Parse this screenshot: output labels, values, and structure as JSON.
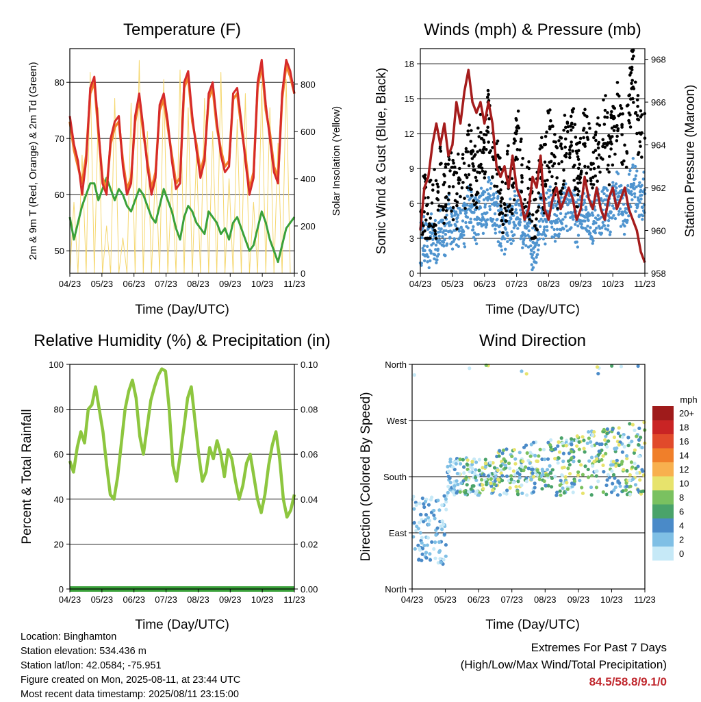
{
  "chart_data": [
    {
      "type": "line",
      "title": "Temperature (F)",
      "xlabel": "Time (Day/UTC)",
      "ylabel": "2m & 9m T (Red, Orange) & 2m Td (Green)",
      "ylabel_right": "Solar Insolation (Yellow)",
      "x_ticks": [
        "04/23",
        "05/23",
        "06/23",
        "07/23",
        "08/23",
        "09/23",
        "10/23",
        "11/23"
      ],
      "ylim": [
        46,
        86
      ],
      "yticks": [
        50,
        60,
        70,
        80
      ],
      "ylim_right": [
        0,
        950
      ],
      "yticks_right": [
        0,
        200,
        400,
        600,
        800
      ],
      "grid": true,
      "series": [
        {
          "name": "2m T",
          "color": "#d62a2a",
          "values": [
            74,
            69,
            66,
            60,
            66,
            79,
            81,
            72,
            62,
            60,
            70,
            73,
            74,
            65,
            60,
            62,
            74,
            78,
            72,
            65,
            60,
            63,
            76,
            78,
            73,
            66,
            61,
            62,
            80,
            82,
            74,
            68,
            63,
            66,
            78,
            80,
            73,
            67,
            64,
            65,
            78,
            79,
            73,
            66,
            60,
            63,
            80,
            84,
            76,
            70,
            64,
            62,
            78,
            84,
            82,
            78
          ]
        },
        {
          "name": "9m T",
          "color": "#f07f2a",
          "values": [
            73,
            68,
            65,
            62,
            67,
            78,
            80,
            71,
            63,
            61,
            69,
            72,
            73,
            66,
            61,
            63,
            73,
            77,
            71,
            66,
            61,
            64,
            75,
            77,
            72,
            67,
            62,
            63,
            79,
            81,
            73,
            69,
            64,
            67,
            77,
            79,
            72,
            68,
            65,
            66,
            77,
            78,
            72,
            67,
            61,
            64,
            79,
            83,
            75,
            71,
            65,
            63,
            77,
            83,
            81,
            78
          ]
        },
        {
          "name": "2m Td",
          "color": "#3aa13a",
          "values": [
            56,
            52,
            55,
            58,
            60,
            62,
            62,
            59,
            61,
            63,
            61,
            59,
            61,
            60,
            58,
            57,
            59,
            61,
            60,
            58,
            56,
            55,
            58,
            61,
            59,
            57,
            54,
            52,
            56,
            58,
            57,
            55,
            54,
            53,
            57,
            56,
            55,
            53,
            54,
            52,
            55,
            56,
            54,
            52,
            50,
            51,
            54,
            57,
            55,
            52,
            50,
            48,
            51,
            54,
            55,
            56
          ]
        },
        {
          "name": "Solar Insolation",
          "color": "#f5d76e",
          "values": [
            0,
            300,
            0,
            500,
            0,
            850,
            0,
            700,
            0,
            200,
            0,
            740,
            0,
            150,
            0,
            720,
            0,
            900,
            0,
            600,
            0,
            450,
            0,
            820,
            0,
            400,
            0,
            860,
            0,
            700,
            0,
            500,
            0,
            740,
            0,
            600,
            0,
            850,
            0,
            400,
            0,
            650,
            0,
            760,
            0,
            300,
            0,
            800,
            0,
            700,
            0,
            550,
            0,
            820,
            0,
            0
          ]
        }
      ]
    },
    {
      "type": "scatter",
      "title": "Winds (mph) & Pressure (mb)",
      "xlabel": "Time (Day/UTC)",
      "ylabel": "Sonic Wind & Gust (Blue, Black)",
      "ylabel_right": "Station Pressure (Maroon)",
      "x_ticks": [
        "04/23",
        "05/23",
        "06/23",
        "07/23",
        "08/23",
        "09/23",
        "10/23",
        "11/23"
      ],
      "ylim": [
        0,
        19.3
      ],
      "yticks": [
        0,
        3,
        6,
        9,
        12,
        15,
        18
      ],
      "ylim_right": [
        958,
        968.5
      ],
      "yticks_right": [
        958,
        960,
        962,
        964,
        966,
        968
      ],
      "grid": true,
      "series": [
        {
          "name": "Wind",
          "color": "#4f94cf",
          "values": [
            2.5,
            3,
            2,
            3.5,
            2.5,
            4,
            3,
            5,
            4,
            3.5,
            5,
            4,
            6,
            5,
            4.5,
            6,
            5,
            7,
            6,
            5,
            4,
            3,
            5,
            4,
            6,
            5,
            3,
            4,
            2,
            3,
            5,
            4,
            6,
            5,
            4,
            5,
            6,
            5,
            6,
            4,
            5,
            6,
            5,
            4,
            6,
            5,
            6,
            5,
            6,
            7,
            6,
            5,
            7,
            8,
            7,
            6,
            7
          ]
        },
        {
          "name": "Gust",
          "color": "#000000",
          "values": [
            5,
            6,
            4,
            7,
            5,
            8,
            6,
            9,
            7,
            6,
            9,
            7,
            11,
            9,
            8,
            12,
            10,
            14,
            11,
            9,
            7,
            6,
            9,
            7,
            12,
            10,
            6,
            8,
            4,
            6,
            9,
            8,
            12,
            10,
            8,
            9,
            11,
            10,
            12,
            8,
            9,
            12,
            10,
            8,
            11,
            10,
            13,
            10,
            12,
            14,
            12,
            10,
            14,
            17,
            13,
            11,
            12
          ]
        },
        {
          "name": "Station Pressure",
          "color": "#a51c1c",
          "values": [
            960,
            962,
            962.5,
            964,
            965,
            964,
            965,
            963.5,
            964,
            966,
            965,
            966.5,
            967.5,
            966,
            965.5,
            966,
            965,
            966,
            965,
            963,
            962.5,
            963,
            962,
            963.5,
            962,
            961.5,
            960.5,
            961,
            962.5,
            962,
            963.5,
            961,
            960.5,
            961.5,
            962,
            961,
            961.5,
            962,
            961.5,
            960.5,
            961,
            962.5,
            961.5,
            961,
            962,
            961,
            960.5,
            961.5,
            962,
            961,
            961.5,
            962,
            961,
            960.5,
            960,
            959,
            958.5
          ]
        }
      ]
    },
    {
      "type": "line",
      "title": "Relative Humidity (%) & Precipitation (in)",
      "xlabel": "Time (Day/UTC)",
      "ylabel": "Percent & Total Rainfall",
      "x_ticks": [
        "04/23",
        "05/23",
        "06/23",
        "07/23",
        "08/23",
        "09/23",
        "10/23",
        "11/23"
      ],
      "ylim": [
        0,
        100
      ],
      "yticks": [
        0,
        20,
        40,
        60,
        80,
        100
      ],
      "ylim_right": [
        0,
        0.1
      ],
      "yticks_right": [
        "0.00",
        "0.02",
        "0.04",
        "0.06",
        "0.08",
        "0.10"
      ],
      "grid": true,
      "series": [
        {
          "name": "Relative Humidity",
          "color": "#8dc63f",
          "values": [
            57,
            52,
            63,
            70,
            65,
            80,
            82,
            90,
            80,
            70,
            55,
            42,
            40,
            50,
            65,
            80,
            88,
            93,
            85,
            68,
            60,
            72,
            84,
            90,
            95,
            98,
            97,
            80,
            55,
            48,
            60,
            72,
            85,
            90,
            75,
            60,
            48,
            52,
            63,
            58,
            66,
            60,
            50,
            62,
            58,
            48,
            40,
            46,
            56,
            60,
            50,
            40,
            34,
            42,
            55,
            64,
            70,
            58,
            40,
            32,
            35,
            42
          ]
        },
        {
          "name": "Total Rainfall",
          "color": "#3aa13a",
          "values": [
            0,
            0,
            0,
            0,
            0,
            0,
            0,
            0
          ]
        }
      ]
    },
    {
      "type": "scatter",
      "title": "Wind Direction",
      "xlabel": "Time (Day/UTC)",
      "ylabel": "Direction (Colored By Speed)",
      "x_ticks": [
        "04/23",
        "05/23",
        "06/23",
        "07/23",
        "08/23",
        "09/23",
        "10/23",
        "11/23"
      ],
      "y_ticks": [
        "North",
        "East",
        "South",
        "West",
        "North"
      ],
      "legend_title": "mph",
      "legend_labels": [
        "0",
        "2",
        "4",
        "6",
        "8",
        "10",
        "12",
        "14",
        "16",
        "18",
        "20+"
      ],
      "legend_colors": [
        "#c6e9f7",
        "#7fbfe5",
        "#4a8ac8",
        "#4aa36a",
        "#7ac160",
        "#e7e36c",
        "#f8b04e",
        "#f07f2a",
        "#e14a2b",
        "#c92424",
        "#9f1b1b"
      ],
      "grid": true
    }
  ],
  "info": {
    "location": "Location: Binghamton",
    "elevation": "Station elevation: 534.436 m",
    "latlon": "Station lat/lon: 42.0584; -75.951",
    "created": "Figure created on Mon, 2025-08-11, at 23:44 UTC",
    "timestamp": "Most recent data timestamp: 2025/08/11 23:15:00"
  },
  "extremes": {
    "line1": "Extremes For Past 7 Days",
    "line2": "(High/Low/Max Wind/Total Precipitation)",
    "value": "84.5/58.8/9.1/0"
  }
}
